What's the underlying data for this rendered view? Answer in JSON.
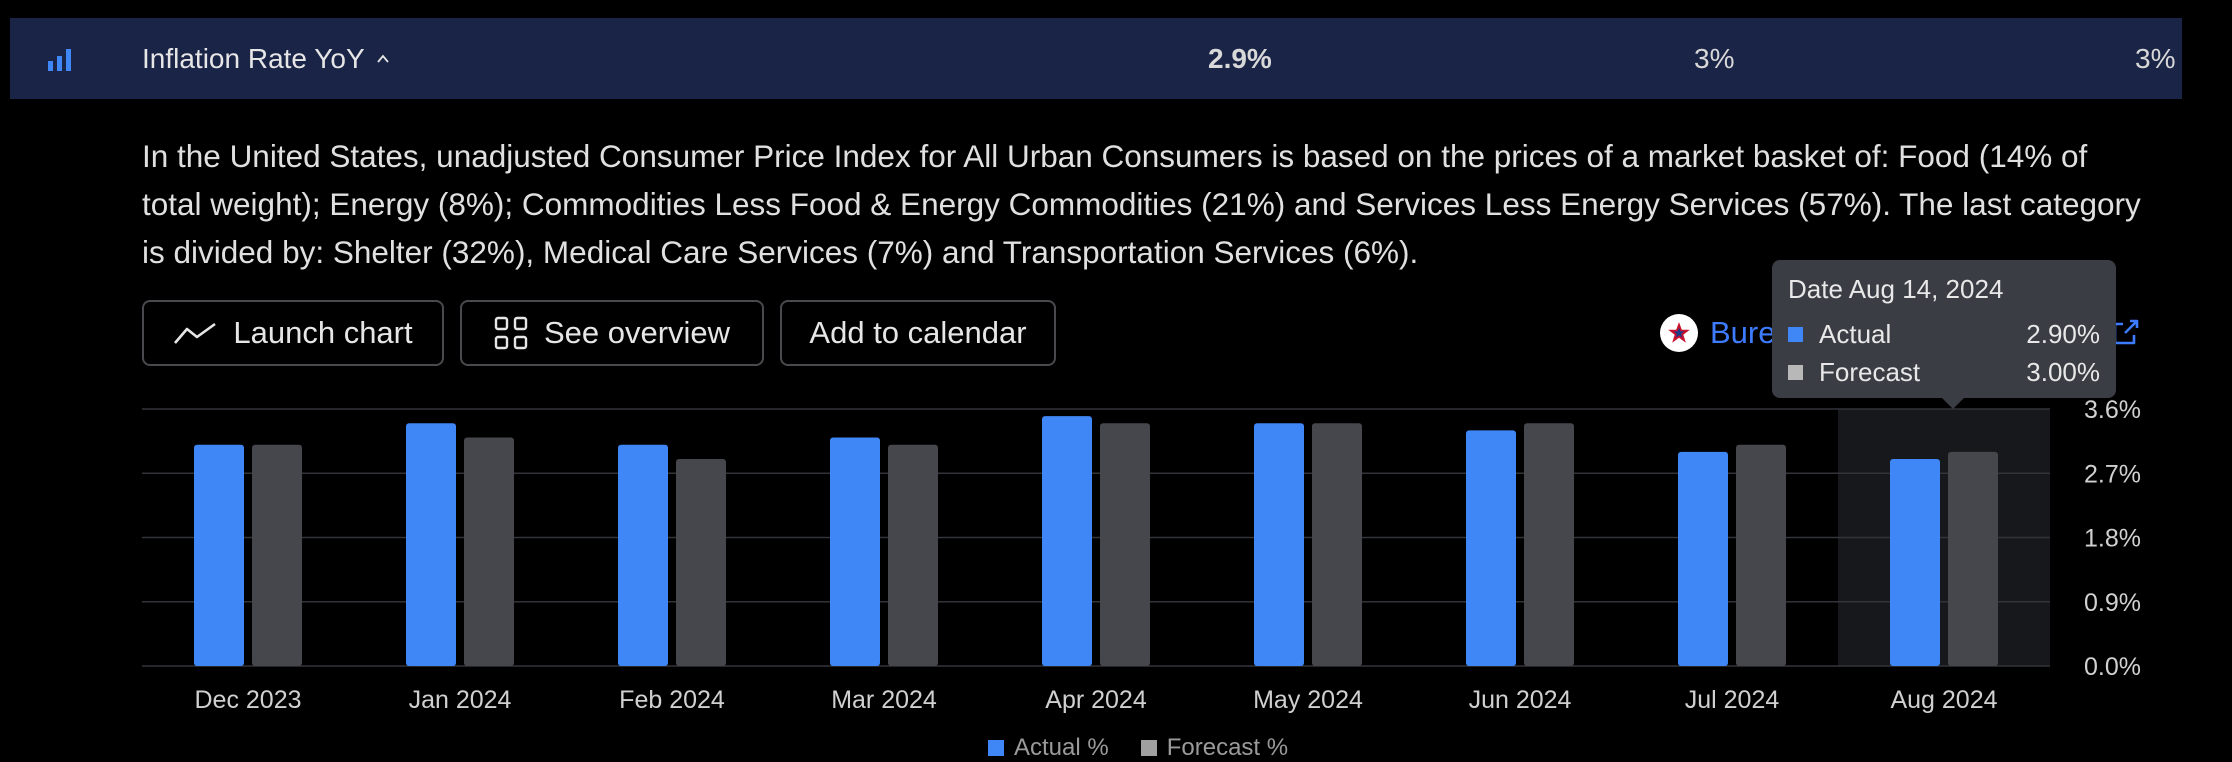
{
  "header": {
    "title": "Inflation Rate YoY",
    "icon": "bar-chart-icon",
    "actual": "2.9%",
    "forecast": "3%",
    "previous": "3%"
  },
  "description": "In the United States, unadjusted Consumer Price Index for All Urban Consumers is based on the prices of a market basket of: Food (14% of total weight); Energy (8%); Commodities Less Food & Energy Commodities (21%) and Services Less Energy Services (57%). The last category is divided by: Shelter (32%), Medical Care Services (7%) and Transportation Services (6%).",
  "buttons": {
    "launch": "Launch chart",
    "overview": "See overview",
    "calendar": "Add to calendar"
  },
  "source": {
    "label": "Bure"
  },
  "tooltip": {
    "date": "Date Aug 14, 2024",
    "rows": [
      {
        "name": "Actual",
        "value": "2.90%"
      },
      {
        "name": "Forecast",
        "value": "3.00%"
      }
    ]
  },
  "legend": [
    "Actual %",
    "Forecast %"
  ],
  "colors": {
    "actual": "#3f86f7",
    "forecast": "#46474d",
    "header_bg": "#1a2447",
    "link": "#3d7bff"
  },
  "chart_data": {
    "type": "bar",
    "categories": [
      "Dec 2023",
      "Jan 2024",
      "Feb 2024",
      "Mar 2024",
      "Apr 2024",
      "May 2024",
      "Jun 2024",
      "Jul 2024",
      "Aug 2024"
    ],
    "series": [
      {
        "name": "Actual %",
        "values": [
          3.1,
          3.4,
          3.1,
          3.2,
          3.5,
          3.4,
          3.3,
          3.0,
          2.9
        ]
      },
      {
        "name": "Forecast %",
        "values": [
          3.1,
          3.2,
          2.9,
          3.1,
          3.4,
          3.4,
          3.4,
          3.1,
          3.0
        ]
      }
    ],
    "y_ticks": [
      "0.0%",
      "0.9%",
      "1.8%",
      "2.7%",
      "3.6%"
    ],
    "ylim": [
      0,
      3.6
    ],
    "highlighted_category": "Aug 2024"
  }
}
